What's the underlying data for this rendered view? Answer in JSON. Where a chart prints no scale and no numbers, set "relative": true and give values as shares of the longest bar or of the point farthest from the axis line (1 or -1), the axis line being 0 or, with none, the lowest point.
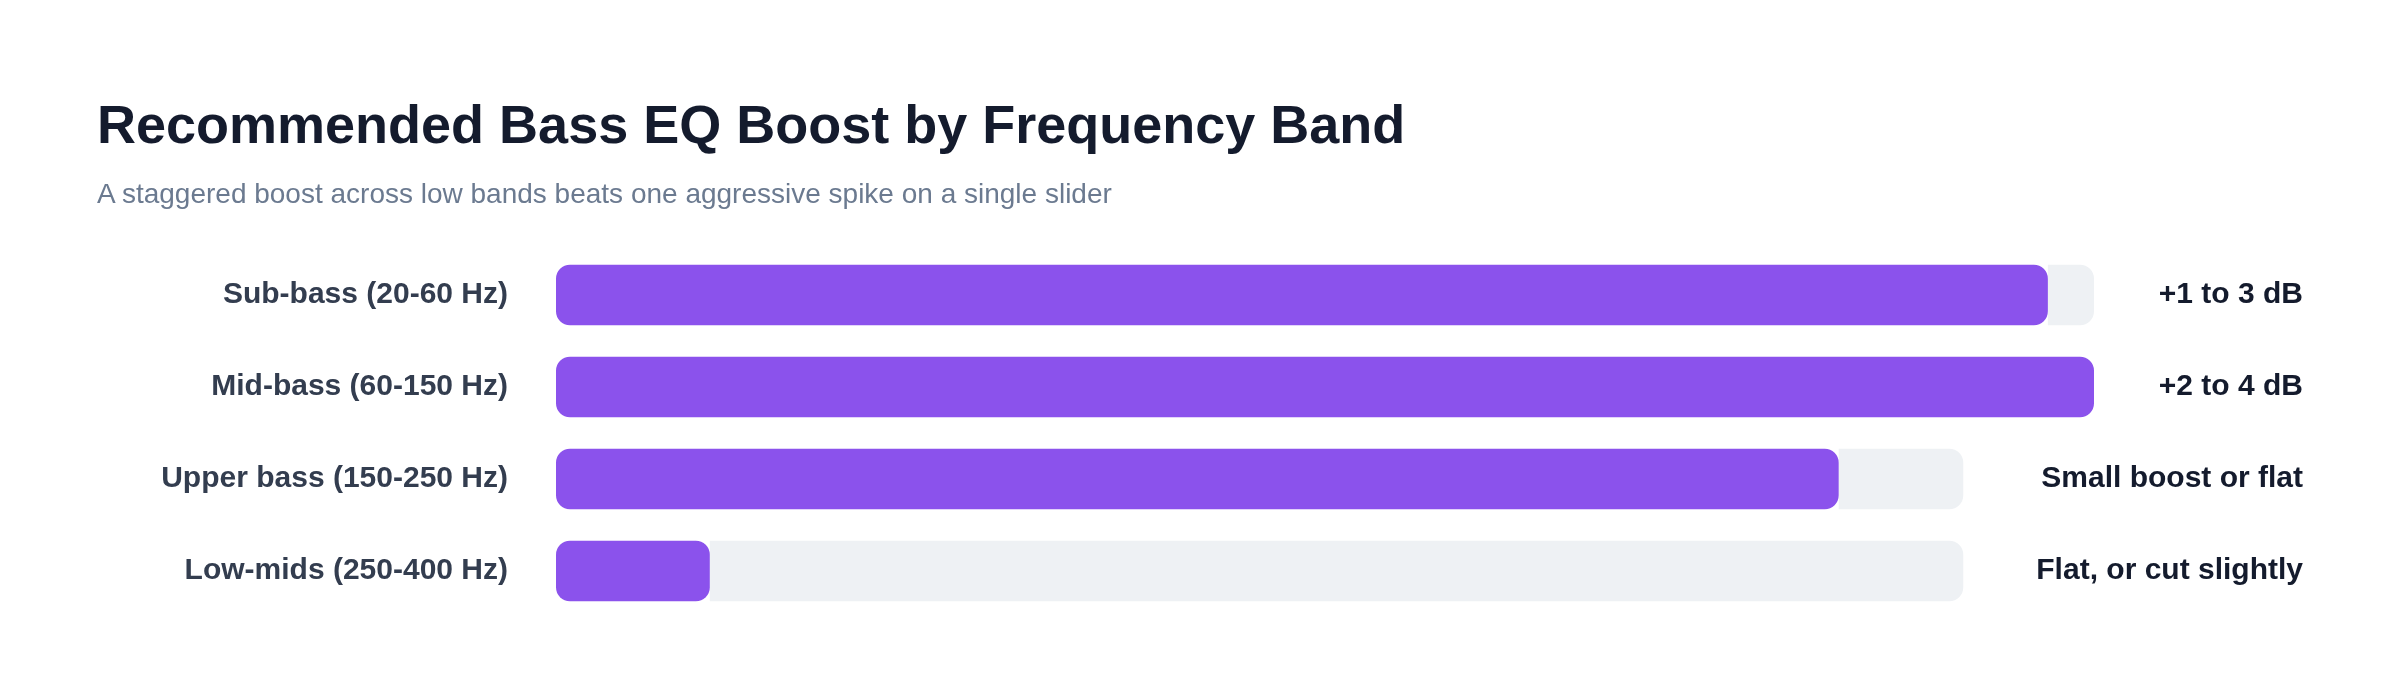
{
  "chart_data": {
    "type": "bar",
    "orientation": "horizontal",
    "relative": true,
    "stacked": true,
    "legend": false,
    "title": "Recommended Bass EQ Boost by Frequency Band",
    "subtitle": "A staggered boost across low bands beats one aggressive spike on a single slider",
    "categories": [
      "Sub-bass (20-60 Hz)",
      "Mid-bass (60-150 Hz)",
      "Upper bass (150-250 Hz)",
      "Low-mids (250-400 Hz)"
    ],
    "series": [
      {
        "color": "#8b52ec",
        "values": [
          0.97,
          1,
          0.834,
          0.1
        ]
      },
      {
        "color": "#eef1f4",
        "values": [
          0.03,
          null,
          0.081,
          0.815
        ]
      }
    ],
    "annotations": [
      "+1 to 3 dB",
      "+2 to 4 dB",
      "Small boost or flat",
      "Flat, or cut slightly"
    ]
  }
}
